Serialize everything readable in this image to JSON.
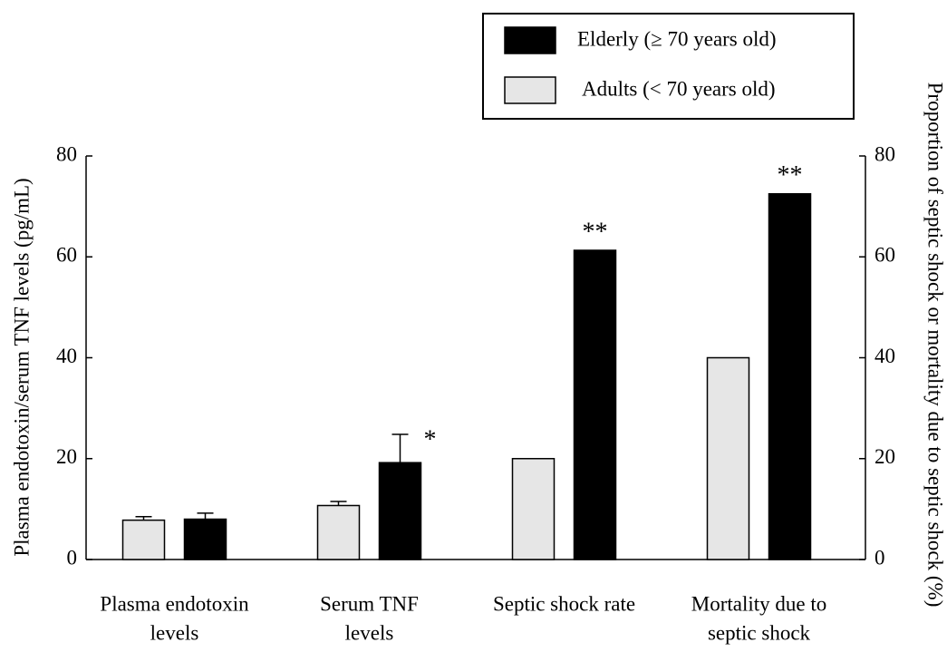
{
  "chart_data": {
    "type": "bar",
    "ylabel": "Plasma endotoxin/serum TNF levels (pg/mL)",
    "y2label": "Proportion of septic shock or mortality due to septic shock (%)",
    "categories": [
      [
        "Plasma endotoxin",
        "levels"
      ],
      [
        "Serum TNF",
        "levels"
      ],
      [
        "Septic shock rate"
      ],
      [
        "Mortality due to",
        "septic shock"
      ]
    ],
    "series": [
      {
        "name": "Elderly (≥ 70 years old)",
        "color": "#000000",
        "values": [
          8,
          19.2,
          61.3,
          72.5
        ],
        "errors": [
          1.2,
          5.6,
          null,
          null
        ],
        "annotations": [
          null,
          "*",
          "**",
          "**"
        ]
      },
      {
        "name": "Adults (< 70 years old)",
        "color": "#e6e6e6",
        "values": [
          7.8,
          10.7,
          20,
          40
        ],
        "errors": [
          0.7,
          0.8,
          null,
          null
        ]
      }
    ],
    "ylim": [
      0,
      80
    ],
    "yticks": [
      0,
      20,
      40,
      60,
      80
    ],
    "y2lim": [
      0,
      80
    ],
    "y2ticks": [
      0,
      20,
      40,
      60,
      80
    ],
    "grid": false,
    "legend": "top-right"
  }
}
